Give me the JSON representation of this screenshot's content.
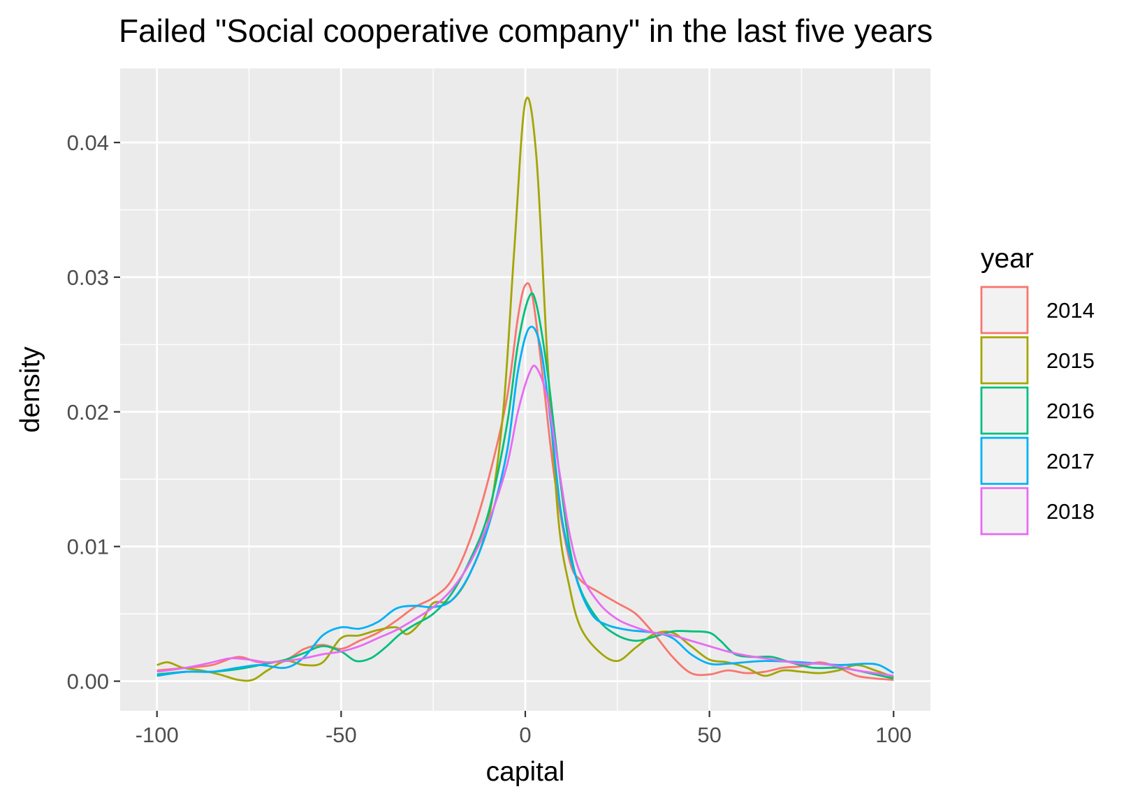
{
  "chart_data": {
    "type": "line",
    "title": "Failed \"Social cooperative company\" in the last five years",
    "xlabel": "capital",
    "ylabel": "density",
    "xlim": [
      -110,
      110
    ],
    "ylim": [
      -0.0022,
      0.0455
    ],
    "x_ticks": [
      {
        "value": -100,
        "label": "-100"
      },
      {
        "value": -50,
        "label": "-50"
      },
      {
        "value": 0,
        "label": "0"
      },
      {
        "value": 50,
        "label": "50"
      },
      {
        "value": 100,
        "label": "100"
      }
    ],
    "y_ticks": [
      {
        "value": 0.0,
        "label": "0.00"
      },
      {
        "value": 0.01,
        "label": "0.01"
      },
      {
        "value": 0.02,
        "label": "0.02"
      },
      {
        "value": 0.03,
        "label": "0.03"
      },
      {
        "value": 0.04,
        "label": "0.04"
      }
    ],
    "grid": true,
    "legend": {
      "title": "year",
      "position": "right"
    },
    "series": [
      {
        "name": "2014",
        "color": "#F8766D",
        "points": [
          [
            -100,
            0.0008
          ],
          [
            -92,
            0.001
          ],
          [
            -85,
            0.0012
          ],
          [
            -78,
            0.0018
          ],
          [
            -72,
            0.0014
          ],
          [
            -65,
            0.0016
          ],
          [
            -60,
            0.0024
          ],
          [
            -55,
            0.0027
          ],
          [
            -50,
            0.0024
          ],
          [
            -45,
            0.003
          ],
          [
            -40,
            0.0036
          ],
          [
            -35,
            0.0045
          ],
          [
            -30,
            0.0055
          ],
          [
            -25,
            0.0062
          ],
          [
            -20,
            0.0075
          ],
          [
            -15,
            0.0105
          ],
          [
            -10,
            0.015
          ],
          [
            -5,
            0.021
          ],
          [
            -2,
            0.027
          ],
          [
            0,
            0.0294
          ],
          [
            2,
            0.0285
          ],
          [
            5,
            0.022
          ],
          [
            8,
            0.015
          ],
          [
            12,
            0.009
          ],
          [
            15,
            0.0075
          ],
          [
            20,
            0.0066
          ],
          [
            25,
            0.0058
          ],
          [
            30,
            0.005
          ],
          [
            35,
            0.0035
          ],
          [
            40,
            0.0018
          ],
          [
            45,
            0.0006
          ],
          [
            50,
            0.0005
          ],
          [
            55,
            0.0008
          ],
          [
            60,
            0.0006
          ],
          [
            65,
            0.0007
          ],
          [
            70,
            0.001
          ],
          [
            75,
            0.0011
          ],
          [
            80,
            0.0014
          ],
          [
            85,
            0.001
          ],
          [
            90,
            0.0004
          ],
          [
            95,
            0.0002
          ],
          [
            100,
            0.0001
          ]
        ]
      },
      {
        "name": "2015",
        "color": "#A3A500",
        "points": [
          [
            -100,
            0.0012
          ],
          [
            -97,
            0.0014
          ],
          [
            -93,
            0.001
          ],
          [
            -88,
            0.0008
          ],
          [
            -83,
            0.0005
          ],
          [
            -78,
            0.0001
          ],
          [
            -74,
            0.0001
          ],
          [
            -70,
            0.0008
          ],
          [
            -65,
            0.0015
          ],
          [
            -60,
            0.0012
          ],
          [
            -55,
            0.0014
          ],
          [
            -50,
            0.0032
          ],
          [
            -45,
            0.0034
          ],
          [
            -40,
            0.0038
          ],
          [
            -35,
            0.004
          ],
          [
            -32,
            0.0035
          ],
          [
            -28,
            0.0045
          ],
          [
            -25,
            0.0058
          ],
          [
            -20,
            0.006
          ],
          [
            -15,
            0.008
          ],
          [
            -10,
            0.012
          ],
          [
            -6,
            0.02
          ],
          [
            -3,
            0.032
          ],
          [
            0,
            0.043
          ],
          [
            3,
            0.039
          ],
          [
            6,
            0.024
          ],
          [
            9,
            0.012
          ],
          [
            12,
            0.007
          ],
          [
            15,
            0.004
          ],
          [
            20,
            0.0022
          ],
          [
            25,
            0.0015
          ],
          [
            30,
            0.0025
          ],
          [
            35,
            0.0035
          ],
          [
            40,
            0.0036
          ],
          [
            45,
            0.0026
          ],
          [
            50,
            0.0016
          ],
          [
            55,
            0.0014
          ],
          [
            60,
            0.001
          ],
          [
            65,
            0.0004
          ],
          [
            70,
            0.0008
          ],
          [
            75,
            0.0007
          ],
          [
            80,
            0.0006
          ],
          [
            85,
            0.0008
          ],
          [
            90,
            0.0012
          ],
          [
            95,
            0.0008
          ],
          [
            100,
            0.0003
          ]
        ]
      },
      {
        "name": "2016",
        "color": "#00BF7D",
        "points": [
          [
            -100,
            0.0005
          ],
          [
            -92,
            0.0007
          ],
          [
            -85,
            0.0007
          ],
          [
            -78,
            0.0009
          ],
          [
            -72,
            0.0012
          ],
          [
            -65,
            0.0016
          ],
          [
            -60,
            0.0021
          ],
          [
            -55,
            0.0026
          ],
          [
            -50,
            0.0022
          ],
          [
            -46,
            0.0015
          ],
          [
            -42,
            0.0017
          ],
          [
            -38,
            0.0025
          ],
          [
            -34,
            0.0035
          ],
          [
            -30,
            0.0042
          ],
          [
            -25,
            0.005
          ],
          [
            -20,
            0.0065
          ],
          [
            -15,
            0.009
          ],
          [
            -10,
            0.0125
          ],
          [
            -5,
            0.019
          ],
          [
            -2,
            0.025
          ],
          [
            1,
            0.0285
          ],
          [
            3,
            0.028
          ],
          [
            6,
            0.023
          ],
          [
            9,
            0.016
          ],
          [
            12,
            0.01
          ],
          [
            15,
            0.0068
          ],
          [
            20,
            0.0045
          ],
          [
            25,
            0.0034
          ],
          [
            30,
            0.003
          ],
          [
            35,
            0.0033
          ],
          [
            40,
            0.0037
          ],
          [
            45,
            0.0037
          ],
          [
            50,
            0.0036
          ],
          [
            53,
            0.003
          ],
          [
            57,
            0.002
          ],
          [
            62,
            0.0018
          ],
          [
            67,
            0.0018
          ],
          [
            72,
            0.0014
          ],
          [
            78,
            0.001
          ],
          [
            85,
            0.001
          ],
          [
            90,
            0.0008
          ],
          [
            95,
            0.0005
          ],
          [
            100,
            0.0002
          ]
        ]
      },
      {
        "name": "2017",
        "color": "#00B0F6",
        "points": [
          [
            -100,
            0.0004
          ],
          [
            -92,
            0.0007
          ],
          [
            -85,
            0.0007
          ],
          [
            -78,
            0.001
          ],
          [
            -72,
            0.0012
          ],
          [
            -65,
            0.001
          ],
          [
            -60,
            0.0018
          ],
          [
            -55,
            0.0034
          ],
          [
            -50,
            0.004
          ],
          [
            -45,
            0.0039
          ],
          [
            -40,
            0.0044
          ],
          [
            -35,
            0.0054
          ],
          [
            -30,
            0.0056
          ],
          [
            -25,
            0.0055
          ],
          [
            -20,
            0.006
          ],
          [
            -15,
            0.008
          ],
          [
            -10,
            0.0115
          ],
          [
            -5,
            0.017
          ],
          [
            -2,
            0.023
          ],
          [
            1,
            0.0262
          ],
          [
            4,
            0.025
          ],
          [
            7,
            0.019
          ],
          [
            10,
            0.012
          ],
          [
            14,
            0.0075
          ],
          [
            18,
            0.005
          ],
          [
            22,
            0.0042
          ],
          [
            28,
            0.0038
          ],
          [
            35,
            0.0036
          ],
          [
            40,
            0.0032
          ],
          [
            45,
            0.002
          ],
          [
            50,
            0.0013
          ],
          [
            55,
            0.0013
          ],
          [
            65,
            0.0015
          ],
          [
            75,
            0.0014
          ],
          [
            85,
            0.0012
          ],
          [
            92,
            0.0013
          ],
          [
            96,
            0.0012
          ],
          [
            100,
            0.0006
          ]
        ]
      },
      {
        "name": "2018",
        "color": "#E76BF3",
        "points": [
          [
            -100,
            0.0007
          ],
          [
            -92,
            0.001
          ],
          [
            -85,
            0.0014
          ],
          [
            -80,
            0.0017
          ],
          [
            -75,
            0.0016
          ],
          [
            -70,
            0.0014
          ],
          [
            -65,
            0.0015
          ],
          [
            -60,
            0.0017
          ],
          [
            -55,
            0.002
          ],
          [
            -50,
            0.0022
          ],
          [
            -45,
            0.0026
          ],
          [
            -40,
            0.0032
          ],
          [
            -35,
            0.0038
          ],
          [
            -30,
            0.0046
          ],
          [
            -25,
            0.0055
          ],
          [
            -20,
            0.0068
          ],
          [
            -15,
            0.0088
          ],
          [
            -10,
            0.0118
          ],
          [
            -5,
            0.016
          ],
          [
            -2,
            0.02
          ],
          [
            1,
            0.0228
          ],
          [
            3,
            0.0233
          ],
          [
            6,
            0.021
          ],
          [
            9,
            0.016
          ],
          [
            12,
            0.011
          ],
          [
            15,
            0.008
          ],
          [
            20,
            0.0058
          ],
          [
            25,
            0.0046
          ],
          [
            30,
            0.004
          ],
          [
            35,
            0.0036
          ],
          [
            40,
            0.0034
          ],
          [
            45,
            0.003
          ],
          [
            50,
            0.0026
          ],
          [
            55,
            0.0022
          ],
          [
            60,
            0.0019
          ],
          [
            65,
            0.0017
          ],
          [
            70,
            0.0015
          ],
          [
            75,
            0.0013
          ],
          [
            80,
            0.0013
          ],
          [
            85,
            0.0011
          ],
          [
            90,
            0.0008
          ],
          [
            95,
            0.0006
          ],
          [
            100,
            0.0004
          ]
        ]
      }
    ]
  }
}
